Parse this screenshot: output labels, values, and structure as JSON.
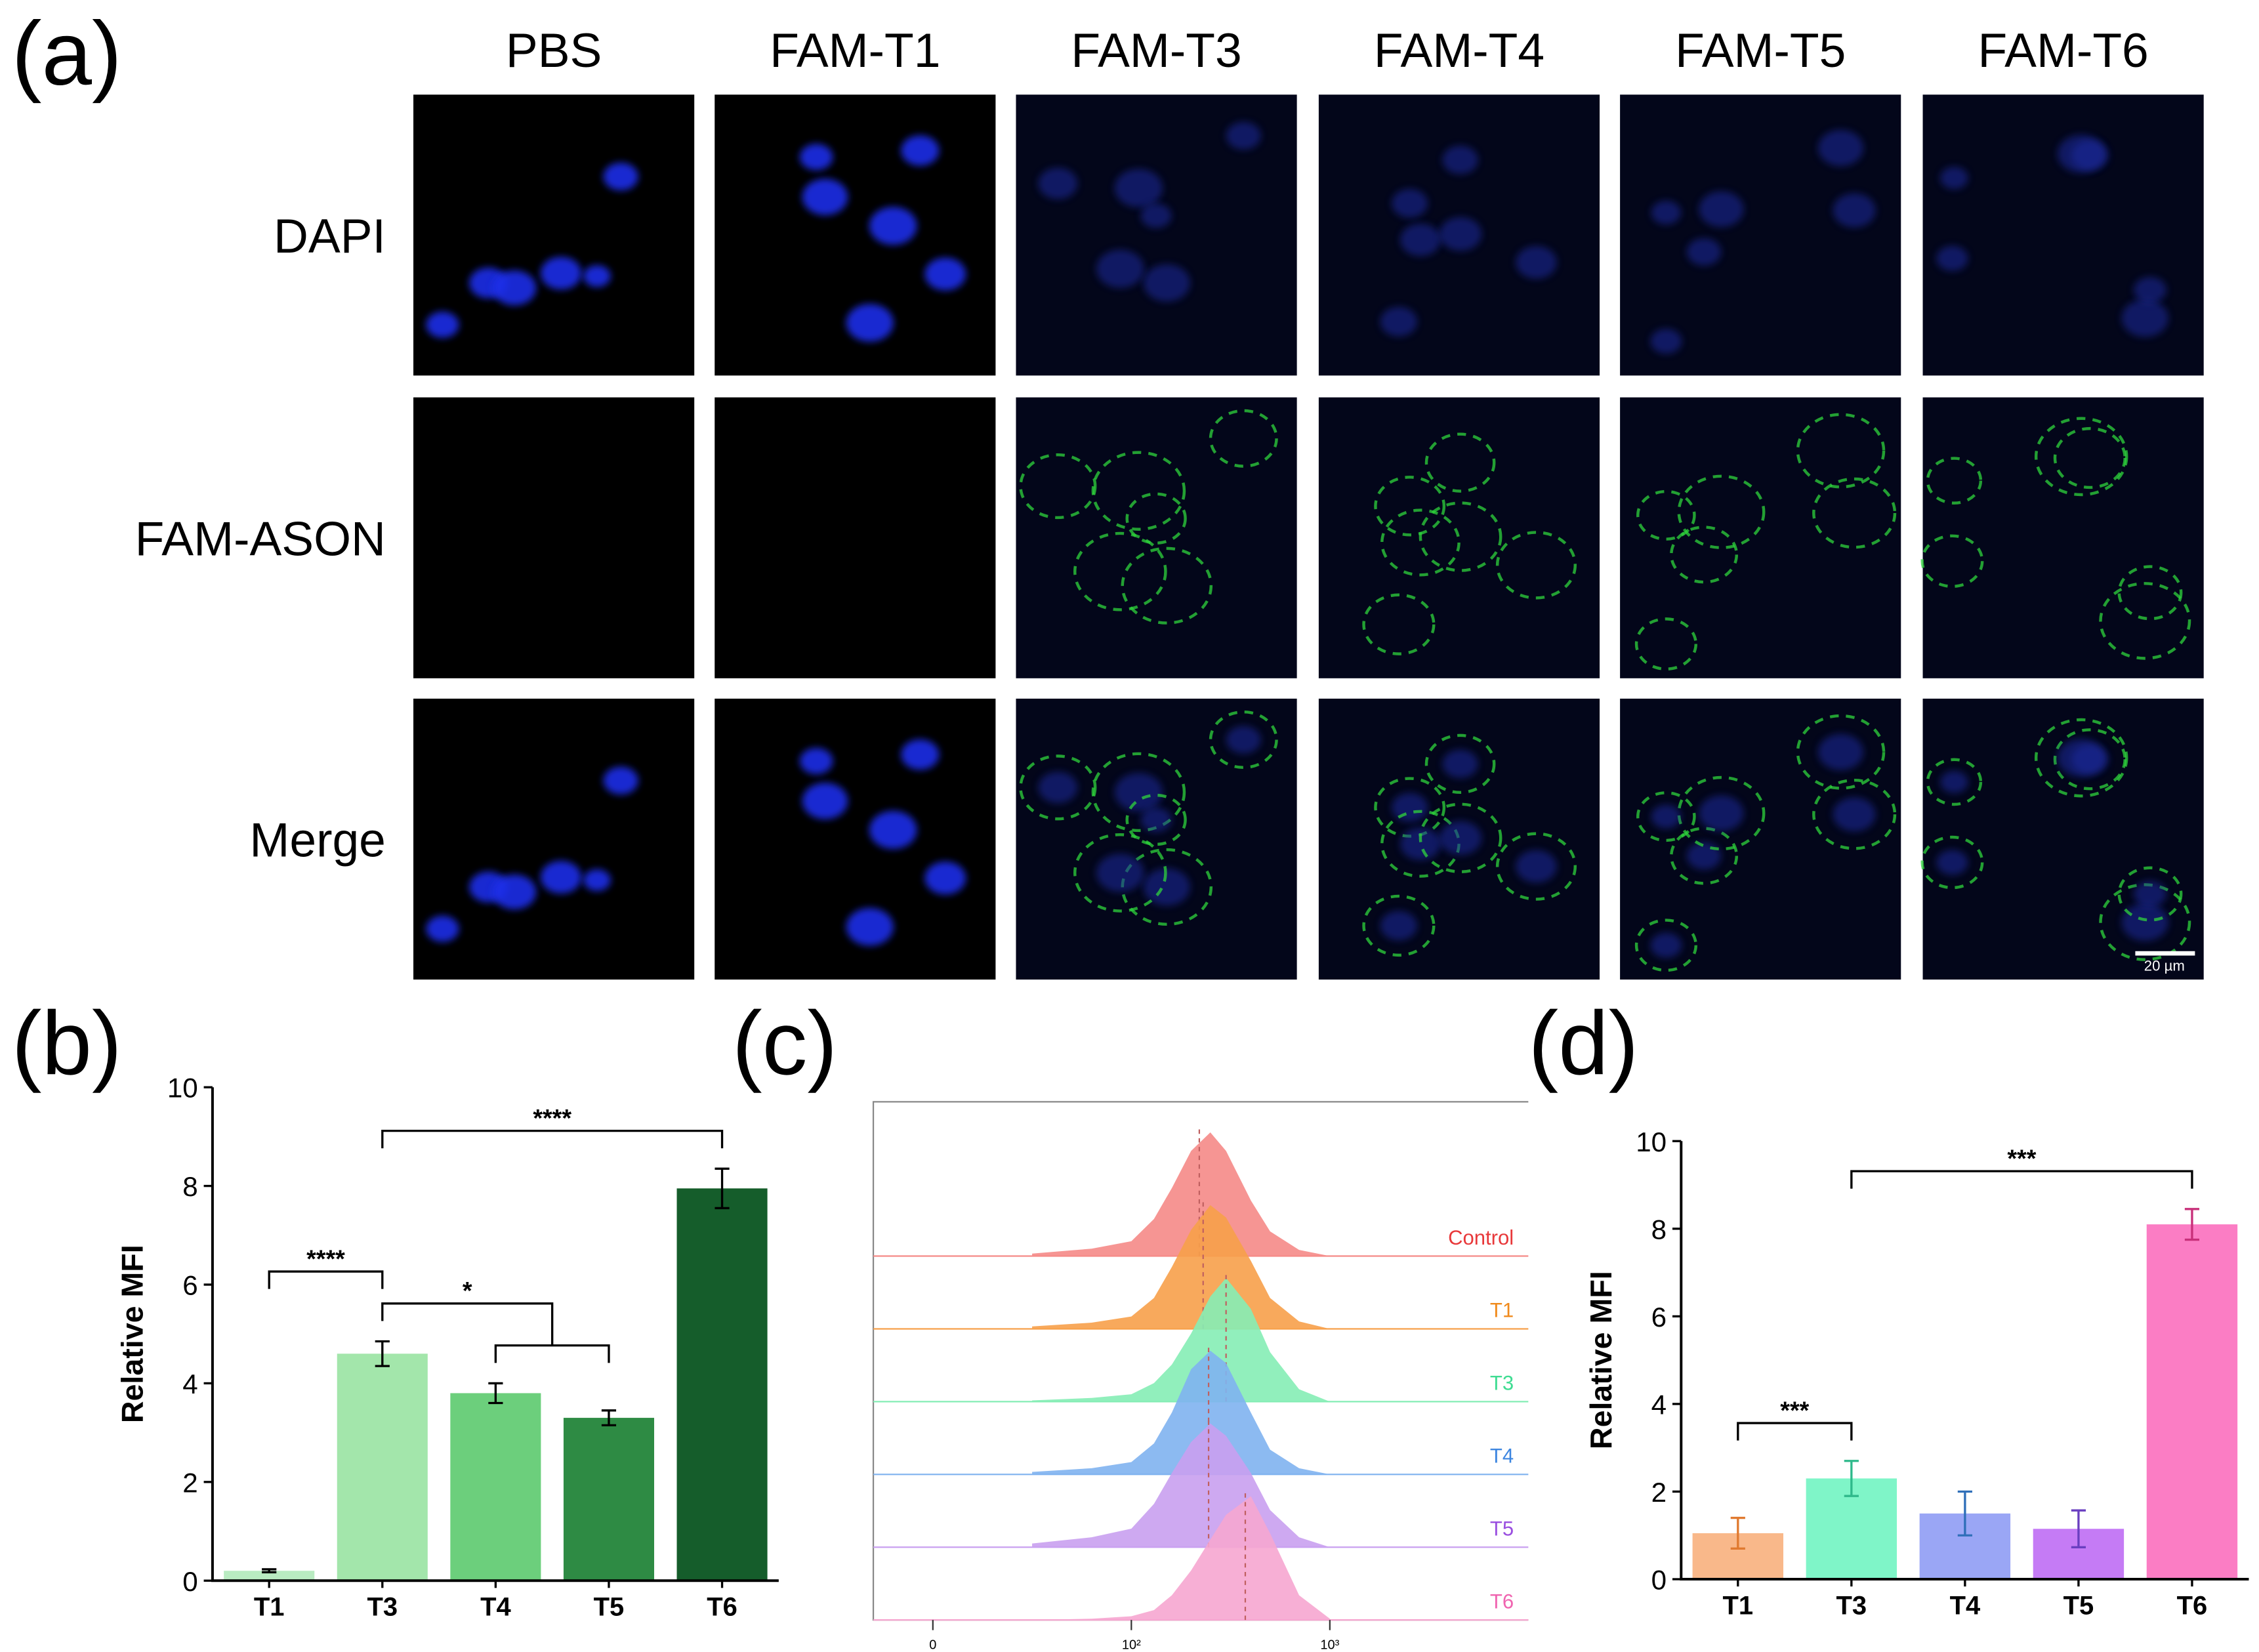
{
  "panel_labels": [
    "(a)",
    "(b)",
    "(c)",
    "(d)"
  ],
  "microscopy": {
    "columns": [
      "PBS",
      "FAM-T1",
      "FAM-T3",
      "FAM-T4",
      "FAM-T5",
      "FAM-T6"
    ],
    "rows": [
      "DAPI",
      "FAM-ASON",
      "Merge"
    ],
    "scale_bar": "20 µm"
  },
  "chart_data": [
    {
      "type": "bar",
      "ylabel": "Relative MFI",
      "categories": [
        "T1",
        "T3",
        "T4",
        "T5",
        "T6"
      ],
      "values": [
        0.2,
        4.6,
        3.8,
        3.3,
        7.95
      ],
      "errors": [
        0.03,
        0.25,
        0.2,
        0.15,
        0.4
      ],
      "colors": [
        "#b9ebc1",
        "#a3e6ab",
        "#6ccf7c",
        "#2e8b44",
        "#155d2b"
      ],
      "error_colors": [
        "#000000",
        "#000000",
        "#000000",
        "#000000",
        "#000000"
      ],
      "ylim": [
        0,
        10
      ],
      "yticks": [
        0,
        2,
        4,
        6,
        8,
        10
      ],
      "comparisons": [
        {
          "from": "T3",
          "to": [
            "T4",
            "T5"
          ],
          "label": "*"
        },
        {
          "from": "T1",
          "to": "T3",
          "label": "****"
        },
        {
          "from": "T3",
          "to": "T6",
          "label": "****"
        }
      ]
    },
    {
      "type": "ridgeline",
      "xscale": "symlog",
      "linthresh": 100,
      "xlim": [
        -30,
        10000
      ],
      "xticks": [
        0,
        {
          "value": 100,
          "label": "10²"
        },
        {
          "value": 1000,
          "label": "10³"
        }
      ],
      "x": [
        50,
        80,
        100,
        130,
        160,
        200,
        250,
        300,
        400,
        500,
        700,
        1000
      ],
      "series": [
        {
          "name": "Control",
          "color": "#f58a87",
          "label_color": "#e8383a",
          "median": 220,
          "values": [
            2,
            6,
            12,
            30,
            55,
            85,
            100,
            85,
            45,
            20,
            5,
            0
          ]
        },
        {
          "name": "T1",
          "color": "#f7a04a",
          "label_color": "#f08a1c",
          "median": 230,
          "values": [
            2,
            5,
            10,
            25,
            50,
            80,
            100,
            90,
            55,
            25,
            6,
            0
          ]
        },
        {
          "name": "T3",
          "color": "#85edb5",
          "label_color": "#3fdc92",
          "median": 300,
          "values": [
            1,
            3,
            6,
            15,
            30,
            55,
            85,
            100,
            75,
            40,
            10,
            0
          ]
        },
        {
          "name": "T4",
          "color": "#7fb2ef",
          "label_color": "#3d86e0",
          "median": 245,
          "values": [
            2,
            5,
            10,
            25,
            50,
            85,
            100,
            90,
            50,
            20,
            5,
            0
          ]
        },
        {
          "name": "T5",
          "color": "#c9a0f0",
          "label_color": "#9a4fe0",
          "median": 245,
          "values": [
            3,
            8,
            15,
            35,
            60,
            85,
            100,
            90,
            60,
            30,
            8,
            0
          ]
        },
        {
          "name": "T6",
          "color": "#f6a6d0",
          "label_color": "#f064b0",
          "median": 375,
          "values": [
            0,
            1,
            3,
            8,
            20,
            40,
            65,
            85,
            100,
            70,
            20,
            1
          ]
        }
      ]
    },
    {
      "type": "bar",
      "ylabel": "Relative MFI",
      "categories": [
        "T1",
        "T3",
        "T4",
        "T5",
        "T6"
      ],
      "values": [
        1.05,
        2.3,
        1.5,
        1.15,
        8.1
      ],
      "errors": [
        0.35,
        0.4,
        0.5,
        0.42,
        0.35
      ],
      "colors": [
        "#f9b88a",
        "#7ff5c8",
        "#9aa6f5",
        "#c57bf5",
        "#fb7dc4"
      ],
      "error_colors": [
        "#e07a30",
        "#2fb98b",
        "#2f6fb9",
        "#6a3fc0",
        "#c8307a"
      ],
      "ylim": [
        0,
        10
      ],
      "yticks": [
        0,
        2,
        4,
        6,
        8,
        10
      ],
      "comparisons": [
        {
          "from": "T1",
          "to": "T3",
          "label": "***"
        },
        {
          "from": "T3",
          "to": "T6",
          "label": "***"
        }
      ]
    }
  ]
}
